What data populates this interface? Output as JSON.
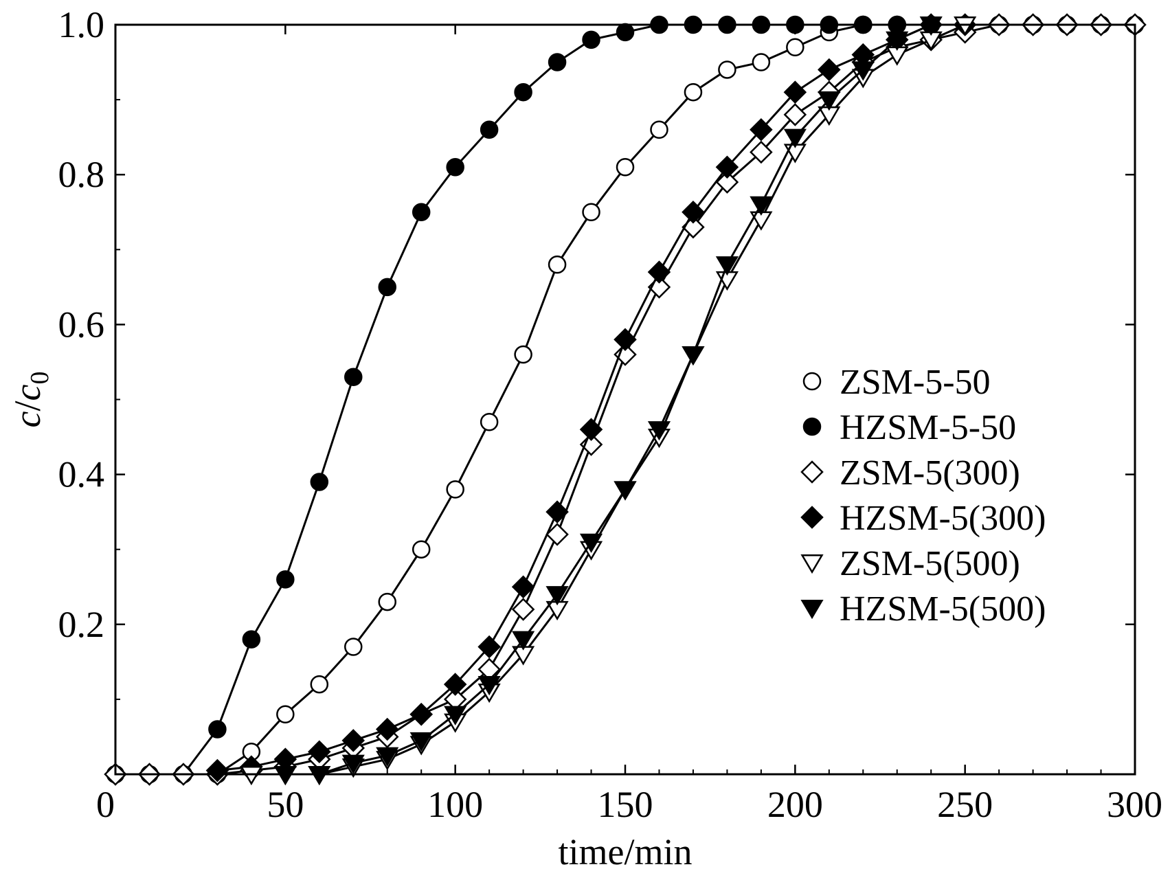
{
  "chart_data": {
    "type": "line",
    "xlabel": "time/min",
    "ylabel": {
      "main": "c/c",
      "subscript": "0"
    },
    "xlim": [
      0,
      300
    ],
    "ylim": [
      0,
      1.0
    ],
    "xticks": [
      0,
      50,
      100,
      150,
      200,
      250,
      300
    ],
    "xtick_labels": [
      "0",
      "50",
      "100",
      "150",
      "200",
      "250",
      "300"
    ],
    "yticks": [
      0.2,
      0.4,
      0.6,
      0.8,
      1.0
    ],
    "ytick_labels": [
      "0.2",
      "0.4",
      "0.6",
      "0.8",
      "1.0"
    ],
    "grid": false,
    "legend_position": "right",
    "line_color": "#000000",
    "series": [
      {
        "name": "ZSM-5-50",
        "marker": "circle",
        "filled": false,
        "x": [
          0,
          10,
          20,
          30,
          40,
          50,
          60,
          70,
          80,
          90,
          100,
          110,
          120,
          130,
          140,
          150,
          160,
          170,
          180,
          190,
          200,
          210,
          220,
          230,
          240,
          250,
          260,
          270,
          280,
          290,
          300
        ],
        "y": [
          0,
          0,
          0,
          0,
          0.03,
          0.08,
          0.12,
          0.17,
          0.23,
          0.3,
          0.38,
          0.47,
          0.56,
          0.68,
          0.75,
          0.81,
          0.86,
          0.91,
          0.94,
          0.95,
          0.97,
          0.99,
          1.0,
          1.0,
          1.0,
          1.0,
          1.0,
          1.0,
          1.0,
          1.0,
          1.0
        ]
      },
      {
        "name": "HZSM-5-50",
        "marker": "circle",
        "filled": true,
        "x": [
          0,
          10,
          20,
          30,
          40,
          50,
          60,
          70,
          80,
          90,
          100,
          110,
          120,
          130,
          140,
          150,
          160,
          170,
          180,
          190,
          200,
          210,
          220,
          230,
          240,
          250,
          260,
          270,
          280,
          290,
          300
        ],
        "y": [
          0,
          0,
          0,
          0.06,
          0.18,
          0.26,
          0.39,
          0.53,
          0.65,
          0.75,
          0.81,
          0.86,
          0.91,
          0.95,
          0.98,
          0.99,
          1.0,
          1.0,
          1.0,
          1.0,
          1.0,
          1.0,
          1.0,
          1.0,
          1.0,
          1.0,
          1.0,
          1.0,
          1.0,
          1.0,
          1.0
        ]
      },
      {
        "name": "ZSM-5(300)",
        "marker": "diamond",
        "filled": false,
        "x": [
          0,
          10,
          20,
          30,
          40,
          50,
          60,
          70,
          80,
          90,
          100,
          110,
          120,
          130,
          140,
          150,
          160,
          170,
          180,
          190,
          200,
          210,
          220,
          230,
          240,
          250,
          260,
          270,
          280,
          290,
          300
        ],
        "y": [
          0,
          0,
          0,
          0,
          0.005,
          0.01,
          0.02,
          0.035,
          0.05,
          0.08,
          0.1,
          0.14,
          0.22,
          0.32,
          0.44,
          0.56,
          0.65,
          0.73,
          0.79,
          0.83,
          0.88,
          0.91,
          0.95,
          0.97,
          0.98,
          0.99,
          1.0,
          1.0,
          1.0,
          1.0,
          1.0
        ]
      },
      {
        "name": "HZSM-5(300)",
        "marker": "diamond",
        "filled": true,
        "x": [
          30,
          40,
          50,
          60,
          70,
          80,
          90,
          100,
          110,
          120,
          130,
          140,
          150,
          160,
          170,
          180,
          190,
          200,
          210,
          220,
          230,
          240,
          250
        ],
        "y": [
          0.005,
          0.01,
          0.02,
          0.03,
          0.045,
          0.06,
          0.08,
          0.12,
          0.17,
          0.25,
          0.35,
          0.46,
          0.58,
          0.67,
          0.75,
          0.81,
          0.86,
          0.91,
          0.94,
          0.96,
          0.98,
          1.0,
          1.0
        ]
      },
      {
        "name": "ZSM-5(500)",
        "marker": "triangle-down",
        "filled": false,
        "x": [
          40,
          50,
          60,
          70,
          80,
          90,
          100,
          110,
          120,
          130,
          140,
          150,
          160,
          170,
          180,
          190,
          200,
          210,
          220,
          230,
          240,
          250
        ],
        "y": [
          0,
          0,
          0,
          0.01,
          0.02,
          0.04,
          0.07,
          0.11,
          0.16,
          0.22,
          0.3,
          0.38,
          0.45,
          0.56,
          0.66,
          0.74,
          0.83,
          0.88,
          0.93,
          0.96,
          0.98,
          1.0
        ]
      },
      {
        "name": "HZSM-5(500)",
        "marker": "triangle-down",
        "filled": true,
        "x": [
          50,
          60,
          70,
          80,
          90,
          100,
          110,
          120,
          130,
          140,
          150,
          160,
          170,
          180,
          190,
          200,
          210,
          220,
          230,
          240
        ],
        "y": [
          0,
          0,
          0.015,
          0.025,
          0.045,
          0.08,
          0.12,
          0.18,
          0.24,
          0.31,
          0.38,
          0.46,
          0.56,
          0.68,
          0.76,
          0.85,
          0.9,
          0.94,
          0.98,
          1.0
        ]
      }
    ]
  }
}
